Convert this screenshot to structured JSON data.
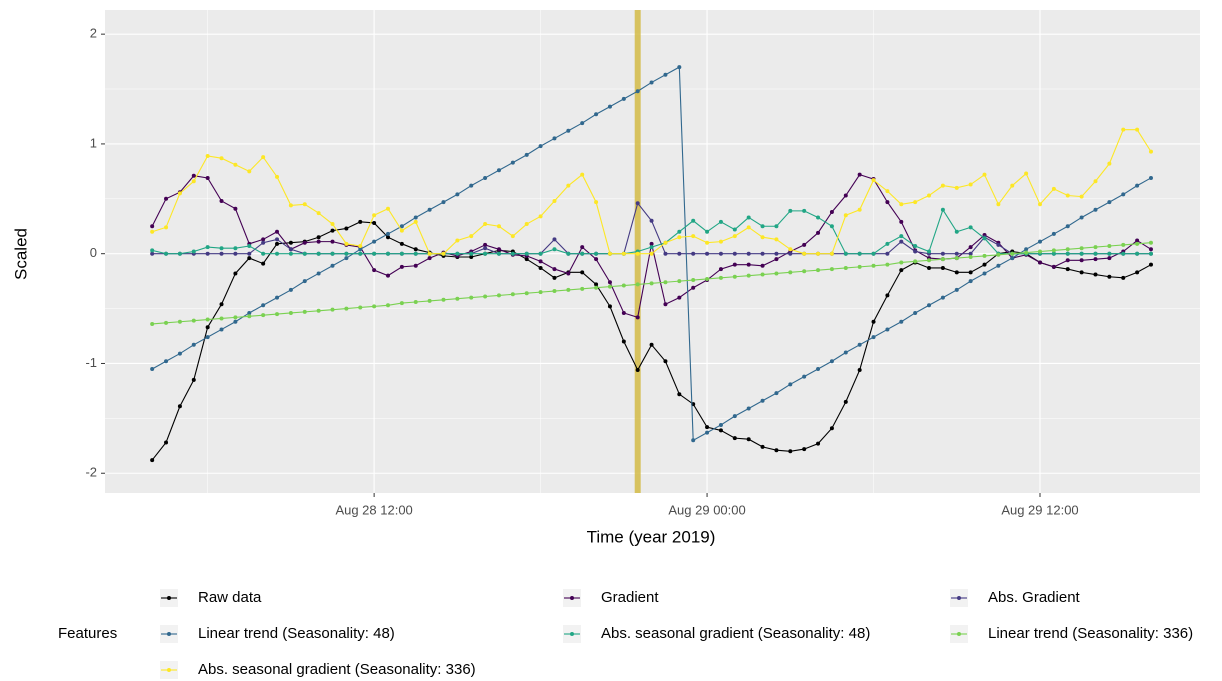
{
  "chart_data": {
    "type": "line",
    "x_label": "Time (year 2019)",
    "y_label": "Scaled",
    "legend_title": "Features",
    "legend": "bottom",
    "grid": true,
    "x": [
      "2019-08-28 04:00",
      "2019-08-28 04:30",
      "2019-08-28 05:00",
      "2019-08-28 05:30",
      "2019-08-28 06:00",
      "2019-08-28 06:30",
      "2019-08-28 07:00",
      "2019-08-28 07:30",
      "2019-08-28 08:00",
      "2019-08-28 08:30",
      "2019-08-28 09:00",
      "2019-08-28 09:30",
      "2019-08-28 10:00",
      "2019-08-28 10:30",
      "2019-08-28 11:00",
      "2019-08-28 11:30",
      "2019-08-28 12:00",
      "2019-08-28 12:30",
      "2019-08-28 13:00",
      "2019-08-28 13:30",
      "2019-08-28 14:00",
      "2019-08-28 14:30",
      "2019-08-28 15:00",
      "2019-08-28 15:30",
      "2019-08-28 16:00",
      "2019-08-28 16:30",
      "2019-08-28 17:00",
      "2019-08-28 17:30",
      "2019-08-28 18:00",
      "2019-08-28 18:30",
      "2019-08-28 19:00",
      "2019-08-28 19:30",
      "2019-08-28 20:00",
      "2019-08-28 20:30",
      "2019-08-28 21:00",
      "2019-08-28 21:30",
      "2019-08-28 22:00",
      "2019-08-28 22:30",
      "2019-08-28 23:00",
      "2019-08-28 23:30",
      "2019-08-29 00:00",
      "2019-08-29 00:30",
      "2019-08-29 01:00",
      "2019-08-29 01:30",
      "2019-08-29 02:00",
      "2019-08-29 02:30",
      "2019-08-29 03:00",
      "2019-08-29 03:30",
      "2019-08-29 04:00",
      "2019-08-29 04:30",
      "2019-08-29 05:00",
      "2019-08-29 05:30",
      "2019-08-29 06:00",
      "2019-08-29 06:30",
      "2019-08-29 07:00",
      "2019-08-29 07:30",
      "2019-08-29 08:00",
      "2019-08-29 08:30",
      "2019-08-29 09:00",
      "2019-08-29 09:30",
      "2019-08-29 10:00",
      "2019-08-29 10:30",
      "2019-08-29 11:00",
      "2019-08-29 11:30",
      "2019-08-29 12:00",
      "2019-08-29 12:30",
      "2019-08-29 13:00",
      "2019-08-29 13:30",
      "2019-08-29 14:00",
      "2019-08-29 14:30",
      "2019-08-29 15:00",
      "2019-08-29 15:30",
      "2019-08-29 16:00"
    ],
    "xlim": [
      "2019-08-28 02:18",
      "2019-08-29 17:46"
    ],
    "xticks": [
      {
        "value": "2019-08-28 12:00",
        "label": "Aug 28 12:00"
      },
      {
        "value": "2019-08-29 00:00",
        "label": "Aug 29 00:00"
      },
      {
        "value": "2019-08-29 12:00",
        "label": "Aug 29 12:00"
      }
    ],
    "xminor": [
      "2019-08-28 06:00",
      "2019-08-28 18:00",
      "2019-08-29 06:00"
    ],
    "ylim": [
      -2.18,
      2.22
    ],
    "yticks": [
      -2,
      -1,
      0,
      1,
      2
    ],
    "yminor": [
      -1.5,
      -0.5,
      0.5,
      1.5
    ],
    "vline": {
      "x": "2019-08-28 21:30",
      "color": "#d4bb45"
    },
    "series": [
      {
        "name": "Raw data",
        "color": "#000000",
        "values": [
          -1.88,
          -1.72,
          -1.39,
          -1.15,
          -0.67,
          -0.46,
          -0.18,
          -0.04,
          -0.09,
          0.09,
          0.1,
          0.11,
          0.15,
          0.21,
          0.23,
          0.29,
          0.28,
          0.15,
          0.09,
          0.04,
          0.01,
          -0.02,
          -0.03,
          -0.03,
          0.0,
          0.03,
          0.02,
          -0.05,
          -0.13,
          -0.22,
          -0.17,
          -0.17,
          -0.28,
          -0.48,
          -0.8,
          -1.06,
          -0.83,
          -0.98,
          -1.28,
          -1.37,
          -1.58,
          -1.61,
          -1.68,
          -1.69,
          -1.76,
          -1.79,
          -1.8,
          -1.78,
          -1.73,
          -1.59,
          -1.35,
          -1.06,
          -0.62,
          -0.38,
          -0.15,
          -0.08,
          -0.13,
          -0.13,
          -0.17,
          -0.17,
          -0.1,
          0.0,
          0.02,
          0.0,
          -0.08,
          -0.12,
          -0.14,
          -0.17,
          -0.19,
          -0.21,
          -0.22,
          -0.17,
          -0.1
        ]
      },
      {
        "name": "Gradient",
        "color": "#440154",
        "values": [
          0.25,
          0.5,
          0.56,
          0.71,
          0.69,
          0.48,
          0.41,
          0.09,
          0.13,
          0.2,
          0.04,
          0.1,
          0.11,
          0.11,
          0.08,
          0.06,
          -0.15,
          -0.2,
          -0.12,
          -0.11,
          -0.04,
          0.01,
          -0.02,
          0.02,
          0.08,
          0.04,
          -0.01,
          -0.02,
          -0.07,
          -0.14,
          -0.18,
          0.06,
          -0.05,
          -0.26,
          -0.54,
          -0.58,
          0.09,
          -0.46,
          -0.4,
          -0.31,
          -0.24,
          -0.14,
          -0.1,
          -0.1,
          -0.11,
          -0.05,
          0.02,
          0.08,
          0.19,
          0.38,
          0.53,
          0.72,
          0.68,
          0.47,
          0.29,
          0.03,
          -0.04,
          -0.05,
          -0.04,
          0.06,
          0.17,
          0.1,
          -0.04,
          -0.01,
          -0.08,
          -0.12,
          -0.06,
          -0.06,
          -0.05,
          -0.04,
          0.02,
          0.12,
          0.04
        ]
      },
      {
        "name": "Abs. Gradient",
        "color": "#443a83",
        "values": [
          0,
          0,
          0,
          0,
          0,
          0,
          0,
          0,
          0.1,
          0.13,
          0.04,
          0,
          0,
          0,
          0,
          0,
          0,
          0,
          0,
          0,
          0,
          0,
          0,
          0,
          0.05,
          0,
          0,
          0,
          0,
          0.13,
          0,
          0,
          0,
          0,
          0,
          0.46,
          0.3,
          0,
          0,
          0,
          0,
          0,
          0,
          0,
          0,
          0,
          0,
          0,
          0,
          0,
          0,
          0,
          0,
          0,
          0.11,
          0.02,
          0,
          0,
          0,
          0,
          0.15,
          0.08,
          0,
          0,
          0,
          0,
          0,
          0,
          0,
          0,
          0,
          0,
          0
        ]
      },
      {
        "name": "Linear trend (Seasonality: 48)",
        "color": "#31688e",
        "values": [
          -1.05,
          -0.98,
          -0.91,
          -0.83,
          -0.76,
          -0.69,
          -0.62,
          -0.54,
          -0.47,
          -0.4,
          -0.33,
          -0.25,
          -0.18,
          -0.11,
          -0.04,
          0.04,
          0.11,
          0.18,
          0.25,
          0.33,
          0.4,
          0.47,
          0.54,
          0.62,
          0.69,
          0.76,
          0.83,
          0.9,
          0.98,
          1.05,
          1.12,
          1.19,
          1.27,
          1.34,
          1.41,
          1.48,
          1.56,
          1.63,
          1.7,
          -1.7,
          -1.63,
          -1.56,
          -1.48,
          -1.41,
          -1.34,
          -1.27,
          -1.19,
          -1.12,
          -1.05,
          -0.98,
          -0.9,
          -0.83,
          -0.76,
          -0.69,
          -0.62,
          -0.54,
          -0.47,
          -0.4,
          -0.33,
          -0.25,
          -0.18,
          -0.11,
          -0.04,
          0.04,
          0.11,
          0.18,
          0.25,
          0.33,
          0.4,
          0.47,
          0.54,
          0.62,
          0.69
        ]
      },
      {
        "name": "Abs. seasonal gradient (Seasonality: 48)",
        "color": "#21a685",
        "values": [
          0.03,
          0,
          0,
          0.02,
          0.06,
          0.05,
          0.05,
          0.07,
          0,
          0,
          0,
          0,
          0,
          0,
          0,
          0,
          0,
          0,
          0,
          0,
          0,
          0,
          0,
          0,
          0,
          0,
          0,
          0,
          0,
          0.04,
          0,
          0,
          0,
          0,
          0,
          0.02,
          0.06,
          0.1,
          0.2,
          0.3,
          0.2,
          0.29,
          0.22,
          0.33,
          0.25,
          0.25,
          0.39,
          0.39,
          0.33,
          0.25,
          0,
          0,
          0,
          0.09,
          0.16,
          0.07,
          0.02,
          0.4,
          0.2,
          0.24,
          0.14,
          0,
          0,
          0,
          0,
          0,
          0,
          0,
          0,
          0,
          0,
          0,
          0
        ]
      },
      {
        "name": "Linear trend (Seasonality: 336)",
        "color": "#7ad151",
        "values": [
          -0.64,
          -0.63,
          -0.62,
          -0.61,
          -0.6,
          -0.59,
          -0.58,
          -0.57,
          -0.56,
          -0.55,
          -0.54,
          -0.53,
          -0.52,
          -0.51,
          -0.5,
          -0.49,
          -0.48,
          -0.47,
          -0.45,
          -0.44,
          -0.43,
          -0.42,
          -0.41,
          -0.4,
          -0.39,
          -0.38,
          -0.37,
          -0.36,
          -0.35,
          -0.34,
          -0.33,
          -0.32,
          -0.31,
          -0.3,
          -0.29,
          -0.28,
          -0.27,
          -0.26,
          -0.25,
          -0.24,
          -0.23,
          -0.22,
          -0.21,
          -0.2,
          -0.19,
          -0.18,
          -0.17,
          -0.16,
          -0.15,
          -0.14,
          -0.13,
          -0.12,
          -0.11,
          -0.1,
          -0.08,
          -0.07,
          -0.06,
          -0.05,
          -0.04,
          -0.03,
          -0.02,
          -0.01,
          0.0,
          0.01,
          0.02,
          0.03,
          0.04,
          0.05,
          0.06,
          0.07,
          0.08,
          0.09,
          0.1
        ]
      },
      {
        "name": "Abs. seasonal gradient (Seasonality: 336)",
        "color": "#fde725",
        "values": [
          0.2,
          0.24,
          0.55,
          0.66,
          0.89,
          0.87,
          0.81,
          0.75,
          0.88,
          0.7,
          0.44,
          0.45,
          0.37,
          0.27,
          0.09,
          0.07,
          0.35,
          0.41,
          0.21,
          0.29,
          0.0,
          0.0,
          0.12,
          0.16,
          0.27,
          0.25,
          0.16,
          0.27,
          0.34,
          0.48,
          0.62,
          0.72,
          0.47,
          0.0,
          0.0,
          0.0,
          0.0,
          0.1,
          0.15,
          0.16,
          0.1,
          0.11,
          0.16,
          0.24,
          0.15,
          0.13,
          0.04,
          0.0,
          0.0,
          0.0,
          0.35,
          0.4,
          0.67,
          0.57,
          0.45,
          0.47,
          0.53,
          0.62,
          0.6,
          0.63,
          0.72,
          0.45,
          0.62,
          0.73,
          0.45,
          0.59,
          0.53,
          0.52,
          0.66,
          0.82,
          1.13,
          1.13,
          0.93
        ]
      }
    ]
  }
}
